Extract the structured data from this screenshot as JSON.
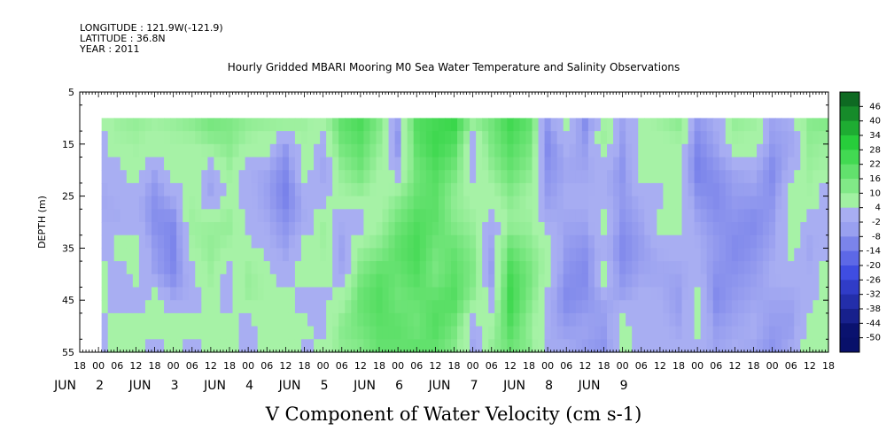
{
  "header": {
    "longitude": "LONGITUDE : 121.9W(-121.9)",
    "latitude": "LATITUDE : 36.8N",
    "year": "YEAR : 2011"
  },
  "chart_data": {
    "type": "heatmap",
    "title": "Hourly Gridded MBARI Mooring M0 Sea Water Temperature and Salinity Observations",
    "xlabel": "V Component of Water Velocity (cm s-1)",
    "ylabel": "DEPTH (m)",
    "y_ticks": [
      "5",
      "15",
      "25",
      "35",
      "45",
      "55"
    ],
    "y_range": [
      5,
      55
    ],
    "y_inverted": true,
    "data_depth_range": [
      10,
      55
    ],
    "x_hour_ticks": [
      "18",
      "00",
      "06",
      "12",
      "18",
      "00",
      "06",
      "12",
      "18",
      "00",
      "06",
      "12",
      "18",
      "00",
      "06",
      "12",
      "18",
      "00",
      "06",
      "12",
      "18",
      "00",
      "06",
      "12",
      "18",
      "00",
      "06",
      "12",
      "18",
      "00",
      "06",
      "12",
      "18",
      "00",
      "06",
      "12",
      "18",
      "00",
      "06",
      "12",
      "18"
    ],
    "x_range_hours": [
      -6,
      234
    ],
    "x_data_start_hours": 1,
    "x_months": [
      {
        "label": "JUN",
        "day": "2",
        "hour": 0
      },
      {
        "label": "JUN",
        "day": "3",
        "hour": 24
      },
      {
        "label": "JUN",
        "day": "4",
        "hour": 48
      },
      {
        "label": "JUN",
        "day": "5",
        "hour": 72
      },
      {
        "label": "JUN",
        "day": "6",
        "hour": 96
      },
      {
        "label": "JUN",
        "day": "7",
        "hour": 120
      },
      {
        "label": "JUN",
        "day": "8",
        "hour": 144
      },
      {
        "label": "JUN",
        "day": "9",
        "hour": 168
      }
    ],
    "colorbar_ticks": [
      "46",
      "40",
      "34",
      "28",
      "22",
      "16",
      "10",
      "4",
      "-2",
      "-8",
      "-14",
      "-20",
      "-26",
      "-32",
      "-38",
      "-44",
      "-50"
    ],
    "colorbar_range": [
      -50,
      50
    ],
    "colors": {
      "strong_positive": "#0a5a1e",
      "positive": "#28d23c",
      "near_zero_positive": "#a6f2a6",
      "near_zero_negative": "#a8aef2",
      "negative": "#3a48e0",
      "strong_negative": "#08106a"
    },
    "column_profiles": [
      {
        "hour": 0,
        "values": [
          0,
          -3,
          -3,
          -6,
          -4,
          -4,
          4,
          2,
          -3,
          -2
        ]
      },
      {
        "hour": 6,
        "values": [
          6,
          4,
          -2,
          -4,
          -5,
          2,
          -4,
          -2,
          3,
          2
        ]
      },
      {
        "hour": 12,
        "values": [
          8,
          5,
          3,
          -3,
          -2,
          4,
          3,
          -3,
          2,
          2
        ]
      },
      {
        "hour": 18,
        "values": [
          6,
          2,
          -6,
          -10,
          -11,
          -8,
          -7,
          3,
          2,
          -3
        ]
      },
      {
        "hour": 24,
        "values": [
          7,
          4,
          3,
          -4,
          -12,
          -13,
          -12,
          -5,
          3,
          3
        ]
      },
      {
        "hour": 30,
        "values": [
          10,
          4,
          2,
          4,
          6,
          4,
          -2,
          -4,
          2,
          -3
        ]
      },
      {
        "hour": 36,
        "values": [
          14,
          8,
          -4,
          -7,
          6,
          8,
          6,
          3,
          2,
          2
        ]
      },
      {
        "hour": 42,
        "values": [
          12,
          10,
          6,
          2,
          8,
          4,
          -3,
          -3,
          2,
          2
        ]
      },
      {
        "hour": 48,
        "values": [
          9,
          4,
          -4,
          -3,
          -3,
          3,
          7,
          6,
          -3,
          -3
        ]
      },
      {
        "hour": 54,
        "values": [
          8,
          2,
          -6,
          -7,
          -5,
          -3,
          3,
          4,
          3,
          2
        ]
      },
      {
        "hour": 60,
        "values": [
          10,
          -8,
          -12,
          -14,
          -10,
          -7,
          -3,
          2,
          3,
          4
        ]
      },
      {
        "hour": 66,
        "values": [
          6,
          4,
          3,
          -4,
          -5,
          2,
          3,
          -3,
          2,
          -3
        ]
      },
      {
        "hour": 72,
        "values": [
          4,
          -4,
          -6,
          -3,
          6,
          5,
          3,
          -2,
          -3,
          3
        ]
      },
      {
        "hour": 78,
        "values": [
          18,
          14,
          8,
          4,
          -4,
          -7,
          -5,
          3,
          10,
          8
        ]
      },
      {
        "hour": 84,
        "values": [
          22,
          18,
          14,
          6,
          -3,
          6,
          12,
          16,
          14,
          10
        ]
      },
      {
        "hour": 90,
        "values": [
          12,
          8,
          4,
          2,
          4,
          10,
          18,
          20,
          18,
          16
        ]
      },
      {
        "hour": 96,
        "values": [
          -6,
          -10,
          -3,
          8,
          14,
          18,
          16,
          14,
          18,
          16
        ]
      },
      {
        "hour": 102,
        "values": [
          20,
          18,
          14,
          16,
          20,
          22,
          20,
          16,
          14,
          18
        ]
      },
      {
        "hour": 108,
        "values": [
          22,
          24,
          20,
          18,
          18,
          14,
          12,
          18,
          20,
          16
        ]
      },
      {
        "hour": 114,
        "values": [
          26,
          20,
          14,
          8,
          10,
          16,
          18,
          20,
          14,
          10
        ]
      },
      {
        "hour": 120,
        "values": [
          10,
          -4,
          -3,
          3,
          6,
          10,
          12,
          8,
          -4,
          -6
        ]
      },
      {
        "hour": 126,
        "values": [
          14,
          12,
          8,
          2,
          -4,
          -6,
          -8,
          -3,
          4,
          8
        ]
      },
      {
        "hour": 132,
        "values": [
          24,
          20,
          16,
          10,
          6,
          16,
          22,
          24,
          20,
          14
        ]
      },
      {
        "hour": 138,
        "values": [
          18,
          14,
          10,
          4,
          6,
          10,
          14,
          12,
          8,
          10
        ]
      },
      {
        "hour": 144,
        "values": [
          -8,
          -12,
          -10,
          -8,
          -4,
          3,
          2,
          -3,
          -4,
          -5
        ]
      },
      {
        "hour": 150,
        "values": [
          6,
          -3,
          -6,
          -4,
          -6,
          -8,
          -10,
          -12,
          -8,
          -4
        ]
      },
      {
        "hour": 156,
        "values": [
          -12,
          -8,
          -6,
          -4,
          -6,
          -10,
          -12,
          -10,
          -6,
          -8
        ]
      },
      {
        "hour": 162,
        "values": [
          4,
          6,
          -3,
          -4,
          3,
          -3,
          2,
          -6,
          -8,
          -10
        ]
      },
      {
        "hour": 168,
        "values": [
          -6,
          -8,
          -10,
          -8,
          -10,
          -12,
          -10,
          -6,
          3,
          2
        ]
      },
      {
        "hour": 174,
        "values": [
          3,
          2,
          4,
          -4,
          -6,
          -8,
          -6,
          -3,
          -2,
          -4
        ]
      },
      {
        "hour": 180,
        "values": [
          6,
          3,
          4,
          -3,
          2,
          -4,
          -6,
          -4,
          -3,
          -2
        ]
      },
      {
        "hour": 186,
        "values": [
          10,
          4,
          2,
          4,
          3,
          -3,
          -6,
          -8,
          -6,
          -3
        ]
      },
      {
        "hour": 192,
        "values": [
          -8,
          -12,
          -14,
          -10,
          -6,
          -4,
          -3,
          3,
          2,
          -3
        ]
      },
      {
        "hour": 198,
        "values": [
          -4,
          -6,
          -10,
          -12,
          -10,
          -8,
          -10,
          -12,
          -8,
          -6
        ]
      },
      {
        "hour": 204,
        "values": [
          8,
          4,
          -6,
          -8,
          -10,
          -12,
          -10,
          -8,
          -6,
          -4
        ]
      },
      {
        "hour": 210,
        "values": [
          6,
          3,
          -4,
          -8,
          -12,
          -10,
          -8,
          -6,
          -4,
          -6
        ]
      },
      {
        "hour": 216,
        "values": [
          -6,
          -8,
          -12,
          -10,
          -8,
          -6,
          -4,
          -6,
          -8,
          -10
        ]
      },
      {
        "hour": 222,
        "values": [
          -4,
          -6,
          -3,
          3,
          4,
          3,
          -3,
          -6,
          -8,
          -4
        ]
      },
      {
        "hour": 228,
        "values": [
          10,
          8,
          6,
          4,
          -3,
          -6,
          -4,
          -3,
          2,
          4
        ]
      },
      {
        "hour": 233,
        "values": [
          12,
          6,
          4,
          -3,
          -4,
          -2,
          3,
          4,
          3,
          2
        ]
      }
    ]
  }
}
